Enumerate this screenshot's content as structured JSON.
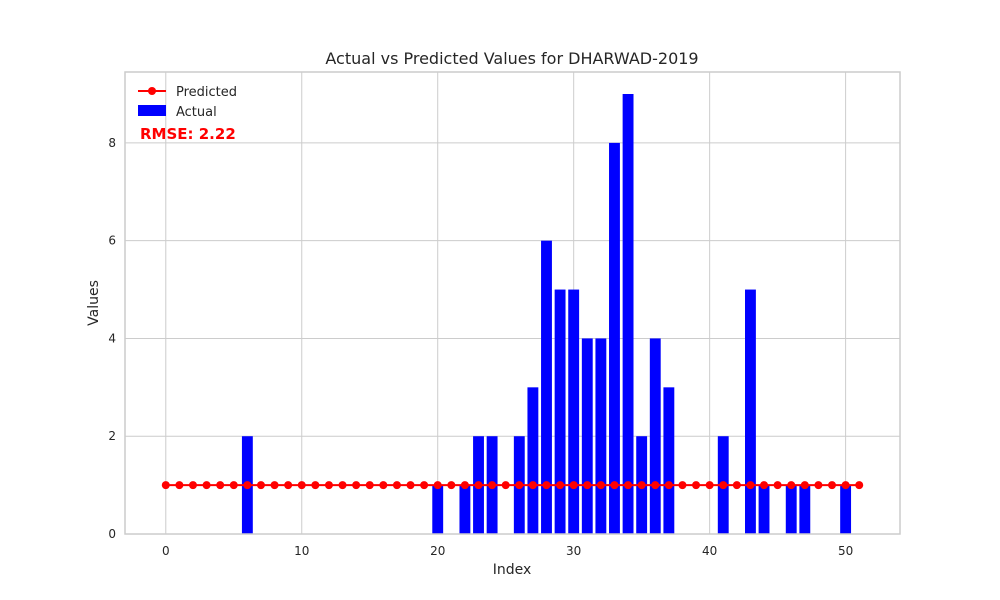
{
  "chart_data": {
    "type": "bar",
    "title": "Actual vs Predicted Values for DHARWAD-2019",
    "xlabel": "Index",
    "ylabel": "Values",
    "xlim": [
      -3,
      54
    ],
    "ylim": [
      0,
      9.45
    ],
    "xticks": [
      0,
      10,
      20,
      30,
      40,
      50
    ],
    "yticks": [
      0,
      2,
      4,
      6,
      8
    ],
    "grid": true,
    "legend_position": "top-left",
    "annotation": "RMSE: 2.22",
    "annotation_color": "#ff0000",
    "series": [
      {
        "name": "Actual",
        "kind": "bar",
        "color": "#0000ff",
        "x": [
          6,
          20,
          22,
          23,
          24,
          26,
          27,
          28,
          29,
          30,
          31,
          32,
          33,
          34,
          35,
          36,
          37,
          41,
          43,
          44,
          46,
          47,
          50
        ],
        "values": [
          2,
          1,
          1,
          2,
          2,
          2,
          3,
          6,
          5,
          5,
          4,
          4,
          8,
          9,
          2,
          4,
          3,
          2,
          5,
          1,
          1,
          1,
          1
        ]
      },
      {
        "name": "Predicted",
        "kind": "line",
        "color": "#ff0000",
        "x": [
          0,
          1,
          2,
          3,
          4,
          5,
          6,
          7,
          8,
          9,
          10,
          11,
          12,
          13,
          14,
          15,
          16,
          17,
          18,
          19,
          20,
          21,
          22,
          23,
          24,
          25,
          26,
          27,
          28,
          29,
          30,
          31,
          32,
          33,
          34,
          35,
          36,
          37,
          38,
          39,
          40,
          41,
          42,
          43,
          44,
          45,
          46,
          47,
          48,
          49,
          50,
          51
        ],
        "values": [
          1,
          1,
          1,
          1,
          1,
          1,
          1,
          1,
          1,
          1,
          1,
          1,
          1,
          1,
          1,
          1,
          1,
          1,
          1,
          1,
          1,
          1,
          1,
          1,
          1,
          1,
          1,
          1,
          1,
          1,
          1,
          1,
          1,
          1,
          1,
          1,
          1,
          1,
          1,
          1,
          1,
          1,
          1,
          1,
          1,
          1,
          1,
          1,
          1,
          1,
          1,
          1
        ]
      }
    ]
  }
}
